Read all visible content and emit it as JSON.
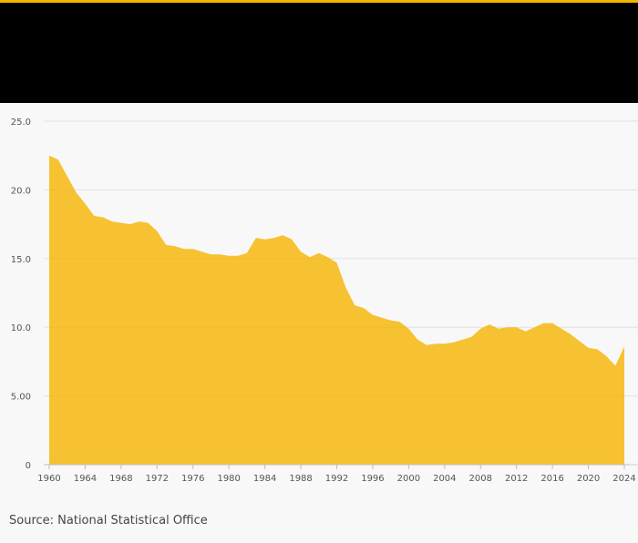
{
  "header": {
    "background": "#000000",
    "accent": "#f5b400"
  },
  "source": "Source: National Statistical Office",
  "chart_data": {
    "type": "area",
    "color": "#f5b400",
    "ylim": [
      0,
      25
    ],
    "xlim": [
      1960,
      2024
    ],
    "grid": true,
    "y_ticks": [
      {
        "value": 0,
        "label": "0"
      },
      {
        "value": 5,
        "label": "5.00"
      },
      {
        "value": 10,
        "label": "10.0"
      },
      {
        "value": 15,
        "label": "15.0"
      },
      {
        "value": 20,
        "label": "20.0"
      },
      {
        "value": 25,
        "label": "25.0"
      }
    ],
    "x_ticks": [
      1960,
      1964,
      1968,
      1972,
      1976,
      1980,
      1984,
      1988,
      1992,
      1996,
      2000,
      2004,
      2008,
      2012,
      2016,
      2020,
      2024
    ],
    "x": [
      1960,
      1961,
      1962,
      1963,
      1964,
      1965,
      1966,
      1967,
      1968,
      1969,
      1970,
      1971,
      1972,
      1973,
      1974,
      1975,
      1976,
      1977,
      1978,
      1979,
      1980,
      1981,
      1982,
      1983,
      1984,
      1985,
      1986,
      1987,
      1988,
      1989,
      1990,
      1991,
      1992,
      1993,
      1994,
      1995,
      1996,
      1997,
      1998,
      1999,
      2000,
      2001,
      2002,
      2003,
      2004,
      2005,
      2006,
      2007,
      2008,
      2009,
      2010,
      2011,
      2012,
      2013,
      2014,
      2015,
      2016,
      2017,
      2018,
      2019,
      2020,
      2021,
      2022,
      2023,
      2024
    ],
    "series": [
      {
        "values": [
          22.5,
          22.2,
          21.0,
          19.8,
          19.0,
          18.1,
          18.0,
          17.7,
          17.6,
          17.5,
          17.7,
          17.6,
          17.0,
          16.0,
          15.9,
          15.7,
          15.7,
          15.5,
          15.3,
          15.3,
          15.2,
          15.2,
          15.4,
          16.5,
          16.4,
          16.5,
          16.7,
          16.4,
          15.5,
          15.1,
          15.4,
          15.1,
          14.7,
          12.9,
          11.6,
          11.4,
          10.9,
          10.7,
          10.5,
          10.4,
          9.9,
          9.1,
          8.7,
          8.8,
          8.8,
          8.9,
          9.1,
          9.3,
          9.9,
          10.2,
          9.9,
          10.0,
          10.0,
          9.7,
          10.0,
          10.3,
          10.3,
          9.9,
          9.5,
          9.0,
          8.5,
          8.4,
          7.9,
          7.2,
          8.6
        ]
      }
    ]
  }
}
